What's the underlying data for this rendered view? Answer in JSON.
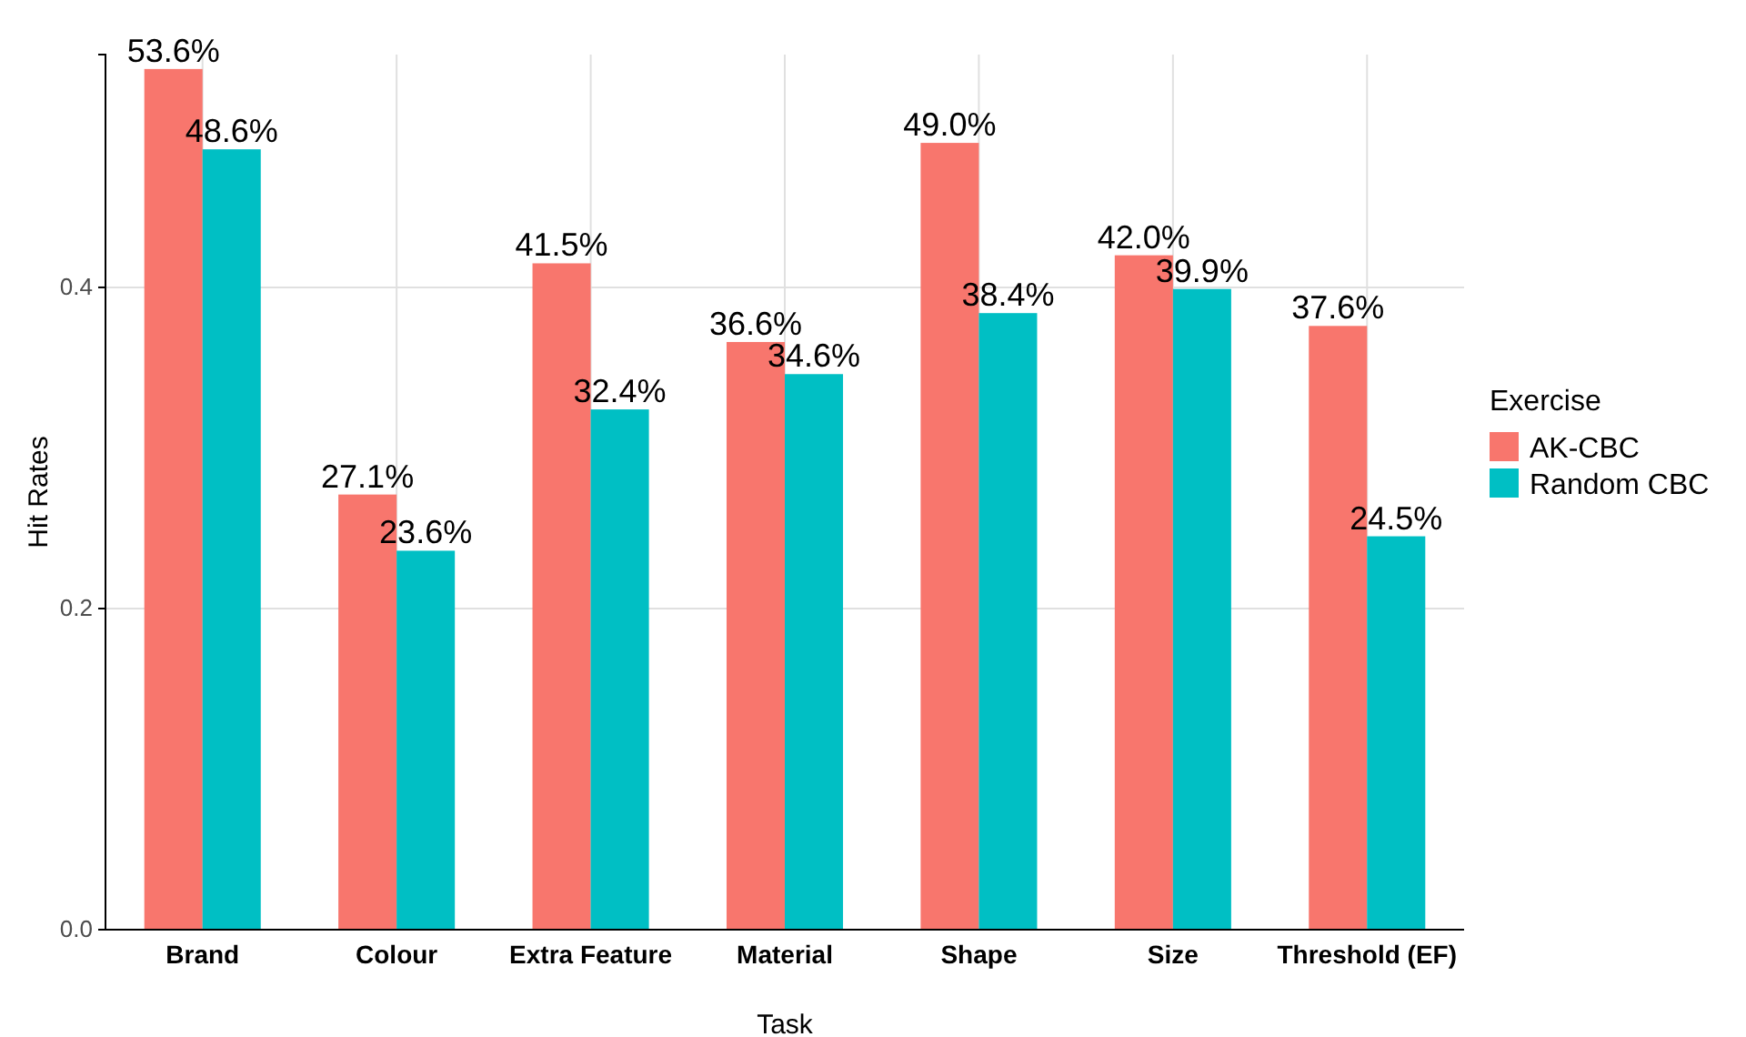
{
  "chart_data": {
    "type": "bar",
    "xlabel": "Task",
    "ylabel": "Hit Rates",
    "legend_title": "Exercise",
    "categories": [
      "Brand",
      "Colour",
      "Extra Feature",
      "Material",
      "Shape",
      "Size",
      "Threshold (EF)"
    ],
    "series": [
      {
        "name": "AK-CBC",
        "color": "#f8766d",
        "values": [
          0.536,
          0.271,
          0.415,
          0.366,
          0.49,
          0.42,
          0.376
        ],
        "value_labels": [
          "53.6%",
          "27.1%",
          "41.5%",
          "36.6%",
          "49.0%",
          "42.0%",
          "37.6%"
        ]
      },
      {
        "name": "Random CBC",
        "color": "#00bfc4",
        "values": [
          0.486,
          0.236,
          0.324,
          0.346,
          0.384,
          0.399,
          0.245
        ],
        "value_labels": [
          "48.6%",
          "23.6%",
          "32.4%",
          "34.6%",
          "38.4%",
          "39.9%",
          "24.5%"
        ]
      }
    ],
    "ylim": [
      0,
      0.545
    ],
    "yticks": [
      {
        "value": 0,
        "label": "0.0"
      },
      {
        "value": 0.2,
        "label": "0.2"
      },
      {
        "value": 0.4,
        "label": "0.4"
      }
    ],
    "grid": true,
    "legend": "right"
  }
}
